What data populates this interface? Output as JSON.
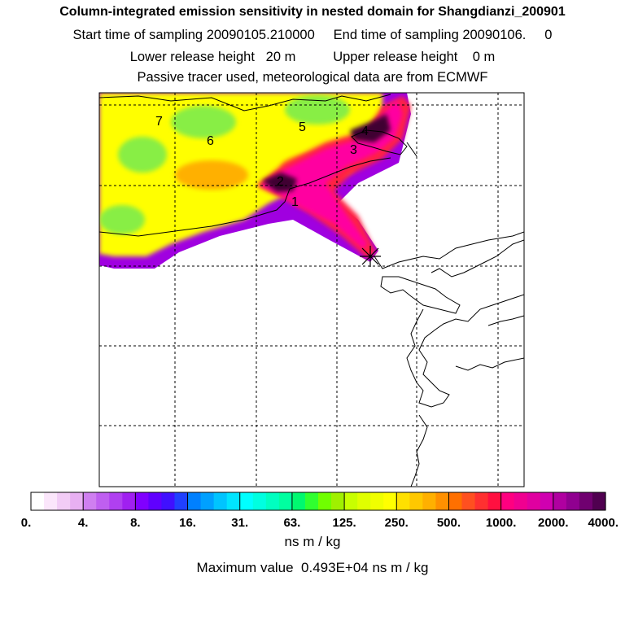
{
  "header": {
    "title": "Column-integrated emission sensitivity in nested domain for Shangdianzi_200901",
    "sampling_line": "Start time of sampling 20090105.210000     End time of sampling 20090106.     0",
    "release_line": "Lower release height   20 m          Upper release height    0 m",
    "info_line": "Passive tracer used, meteorological data are from ECMWF"
  },
  "map": {
    "region_labels": [
      "1",
      "2",
      "3",
      "4",
      "5",
      "6",
      "7"
    ],
    "release_site_marker": "star-cross",
    "grid": true,
    "colors": {
      "yellow": "#ffff00",
      "yellow_green": "#d4f000",
      "green": "#88ee44",
      "orange": "#ffb000",
      "red": "#ff2040",
      "magenta": "#ff00a0",
      "purple": "#a000e0",
      "dark": "#400030"
    }
  },
  "colorbar": {
    "tick_labels": [
      "0.",
      "4.",
      "8.",
      "16.",
      "31.",
      "63.",
      "125.",
      "250.",
      "500.",
      "1000.",
      "2000.",
      "4000."
    ],
    "colors": [
      "#ffffff",
      "#fbe6fb",
      "#f2ccf6",
      "#e8b0f2",
      "#cf7ff0",
      "#bf5ff0",
      "#b040f0",
      "#a020f0",
      "#8000ff",
      "#6000ff",
      "#4010ff",
      "#2040ff",
      "#0080ff",
      "#00a0ff",
      "#00c4ff",
      "#00e4ff",
      "#00ffff",
      "#00ffe0",
      "#00ffc0",
      "#00ffa0",
      "#00f870",
      "#30ff30",
      "#70ff00",
      "#a0f000",
      "#c8ff00",
      "#e0ff00",
      "#f0ff00",
      "#ffff00",
      "#ffe000",
      "#ffc800",
      "#ffb000",
      "#ff9000",
      "#ff7000",
      "#ff5020",
      "#ff3030",
      "#ff1040",
      "#ff0080",
      "#f00090",
      "#e000a0",
      "#d000b0",
      "#b000a0",
      "#900090",
      "#700070",
      "#500050"
    ],
    "unit_label": "ns m / kg",
    "max_value_text": "Maximum value  0.493E+04 ns m / kg"
  }
}
